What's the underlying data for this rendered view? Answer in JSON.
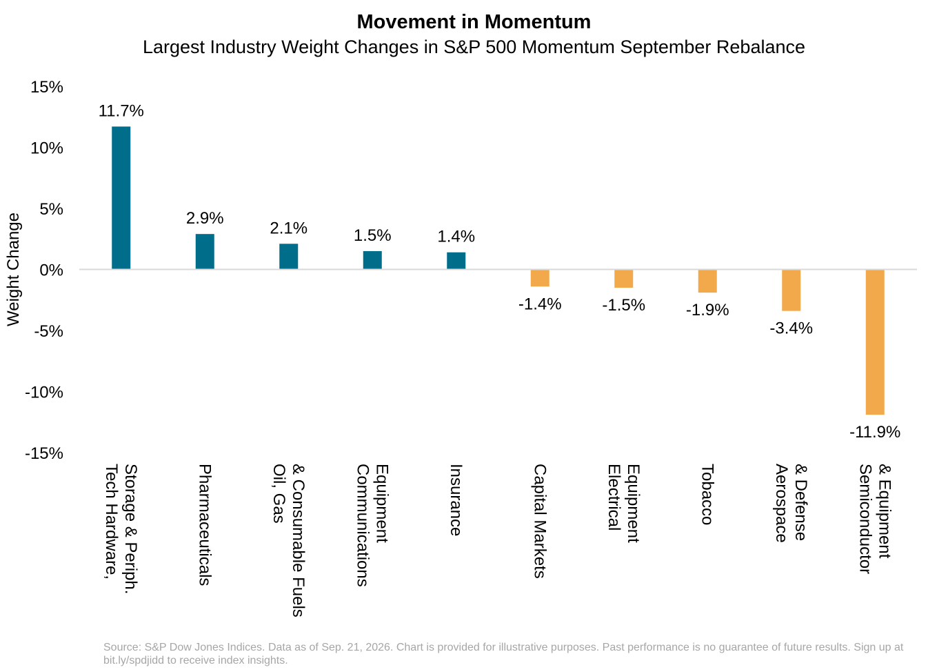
{
  "chart_data": {
    "type": "bar",
    "title": "Movement in Momentum",
    "subtitle": "Largest Industry Weight Changes in S&P 500 Momentum September Rebalance",
    "ylabel": "Weight Change",
    "xlabel": "",
    "ylim": [
      -15,
      15
    ],
    "yticks": [
      15,
      10,
      5,
      0,
      -5,
      -10,
      -15
    ],
    "ytick_labels": [
      "15%",
      "10%",
      "5%",
      "0%",
      "-5%",
      "-10%",
      "-15%"
    ],
    "grid": false,
    "categories": [
      [
        "Tech Hardware,",
        "Storage & Periph."
      ],
      [
        "Pharmaceuticals"
      ],
      [
        "Oil, Gas",
        "& Consumable Fuels"
      ],
      [
        "Communications",
        "Equipment"
      ],
      [
        "Insurance"
      ],
      [
        "Capital Markets"
      ],
      [
        "Electrical",
        "Equipment"
      ],
      [
        "Tobacco"
      ],
      [
        "Aerospace",
        "& Defense"
      ],
      [
        "Semiconductor",
        "& Equipment"
      ]
    ],
    "values": [
      11.7,
      2.9,
      2.1,
      1.5,
      1.4,
      -1.4,
      -1.5,
      -1.9,
      -3.4,
      -11.9
    ],
    "value_labels": [
      "11.7%",
      "2.9%",
      "2.1%",
      "1.5%",
      "1.4%",
      "-1.4%",
      "-1.5%",
      "-1.9%",
      "-3.4%",
      "-11.9%"
    ],
    "colors": {
      "positive": "#006d8a",
      "negative": "#f2a94c",
      "axis": "#d9d9d9"
    }
  },
  "footnote": "Source: S&P Dow Jones Indices. Data as of Sep. 21, 2026. Chart is provided for illustrative purposes. Past performance is no guarantee of future results. Sign up at bit.ly/spdjidd to receive index insights."
}
